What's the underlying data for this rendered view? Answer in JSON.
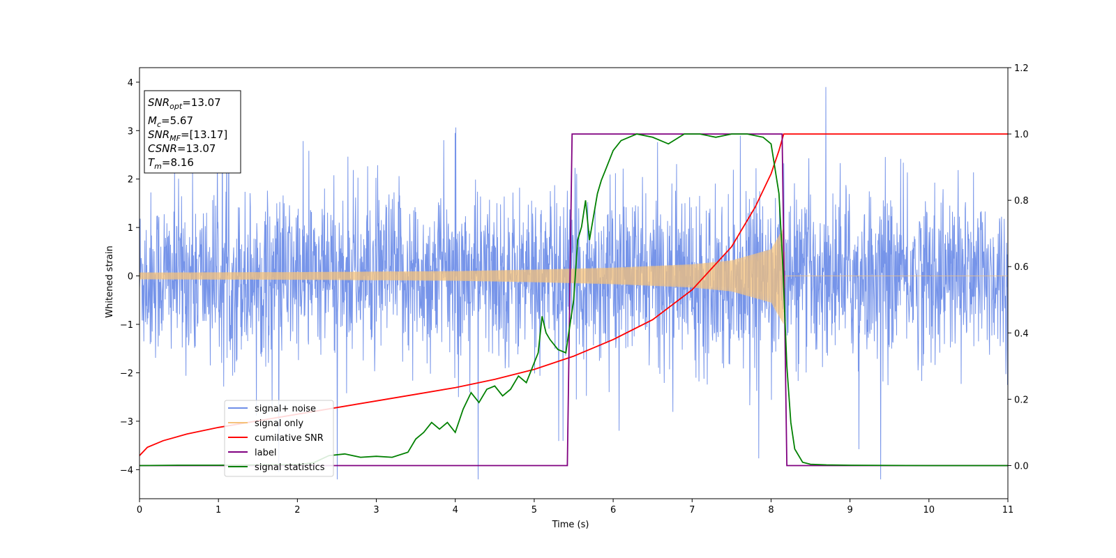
{
  "chart_data": {
    "type": "line",
    "xlabel": "Time (s)",
    "ylabel": "Whitened strain",
    "xlim": [
      0,
      11
    ],
    "ylim": [
      -4.6,
      4.3
    ],
    "y2lim": [
      -0.1,
      1.2
    ],
    "xticks": [
      "0",
      "1",
      "2",
      "3",
      "4",
      "5",
      "6",
      "7",
      "8",
      "9",
      "10",
      "11"
    ],
    "yticks": [
      "4",
      "3",
      "2",
      "1",
      "0",
      "−1",
      "−2",
      "−3",
      "−4"
    ],
    "y2ticks": [
      "1.2",
      "1.0",
      "0.8",
      "0.6",
      "0.4",
      "0.2",
      "0.0"
    ],
    "grid": false,
    "legend_position": "lower-left",
    "info_box": {
      "snr_opt_base": "SNR",
      "snr_opt_sub": "opt",
      "snr_opt_value": "=13.07",
      "mc_base": "M",
      "mc_sub": "c",
      "mc_value": "=5.67",
      "snr_mf_base": "SNR",
      "snr_mf_sub": "MF",
      "snr_mf_value": "=[13.17]",
      "csnr_base": "CSNR",
      "csnr_value": "=13.07",
      "tm_base": "T",
      "tm_sub": "m",
      "tm_value": "=8.16"
    },
    "series": [
      {
        "name": "signal+ noise",
        "axis": "left",
        "color": "#6f8ee8",
        "description_values": {
          "noise_std": 0.85,
          "start": 0,
          "end": 11
        }
      },
      {
        "name": "signal only",
        "axis": "left",
        "color": "#f5c27a",
        "envelope": {
          "x": [
            0,
            1,
            2,
            3,
            4,
            5,
            6,
            7,
            7.5,
            8.0,
            8.16,
            8.18,
            11
          ],
          "amp": [
            0.07,
            0.075,
            0.08,
            0.09,
            0.1,
            0.13,
            0.17,
            0.24,
            0.32,
            0.55,
            1.0,
            0.0,
            0.0
          ]
        }
      },
      {
        "name": "cumilative SNR",
        "axis": "right",
        "color": "#ff0000",
        "x": [
          0,
          0.1,
          0.3,
          0.6,
          1,
          1.5,
          2,
          2.5,
          3,
          3.5,
          4,
          4.5,
          5,
          5.5,
          6,
          6.5,
          7,
          7.5,
          7.8,
          8.0,
          8.1,
          8.16,
          8.2,
          11
        ],
        "y": [
          0.03,
          0.055,
          0.075,
          0.095,
          0.115,
          0.135,
          0.155,
          0.175,
          0.195,
          0.215,
          0.235,
          0.26,
          0.29,
          0.33,
          0.38,
          0.44,
          0.53,
          0.66,
          0.78,
          0.88,
          0.95,
          1.0,
          1.0,
          1.0
        ]
      },
      {
        "name": "label",
        "axis": "right",
        "color": "#800080",
        "x": [
          0,
          5.42,
          5.48,
          8.14,
          8.2,
          11
        ],
        "y": [
          0,
          0,
          1,
          1,
          0,
          0
        ]
      },
      {
        "name": "signal statistics",
        "axis": "right",
        "color": "#008000",
        "x": [
          0,
          0.5,
          1,
          1.5,
          2,
          2.2,
          2.4,
          2.6,
          2.8,
          3.0,
          3.2,
          3.4,
          3.5,
          3.6,
          3.7,
          3.8,
          3.9,
          4.0,
          4.1,
          4.2,
          4.3,
          4.4,
          4.5,
          4.6,
          4.7,
          4.8,
          4.9,
          5.0,
          5.05,
          5.1,
          5.15,
          5.2,
          5.3,
          5.4,
          5.5,
          5.55,
          5.6,
          5.65,
          5.7,
          5.75,
          5.8,
          5.85,
          5.9,
          6.0,
          6.1,
          6.2,
          6.3,
          6.5,
          6.7,
          6.9,
          7.1,
          7.3,
          7.5,
          7.7,
          7.9,
          8.0,
          8.1,
          8.15,
          8.2,
          8.25,
          8.3,
          8.4,
          8.5,
          8.7,
          9,
          10,
          11
        ],
        "y": [
          0,
          0.001,
          0.001,
          0.002,
          0.003,
          0.008,
          0.03,
          0.035,
          0.025,
          0.028,
          0.025,
          0.04,
          0.08,
          0.1,
          0.13,
          0.11,
          0.13,
          0.1,
          0.17,
          0.22,
          0.19,
          0.23,
          0.24,
          0.21,
          0.23,
          0.27,
          0.25,
          0.31,
          0.34,
          0.45,
          0.4,
          0.38,
          0.35,
          0.34,
          0.5,
          0.68,
          0.72,
          0.8,
          0.68,
          0.75,
          0.82,
          0.86,
          0.89,
          0.95,
          0.98,
          0.99,
          1.0,
          0.99,
          0.97,
          1.0,
          1.0,
          0.99,
          1.0,
          1.0,
          0.99,
          0.97,
          0.82,
          0.6,
          0.3,
          0.13,
          0.05,
          0.01,
          0.004,
          0.002,
          0.001,
          0.0,
          0.0
        ]
      }
    ]
  }
}
